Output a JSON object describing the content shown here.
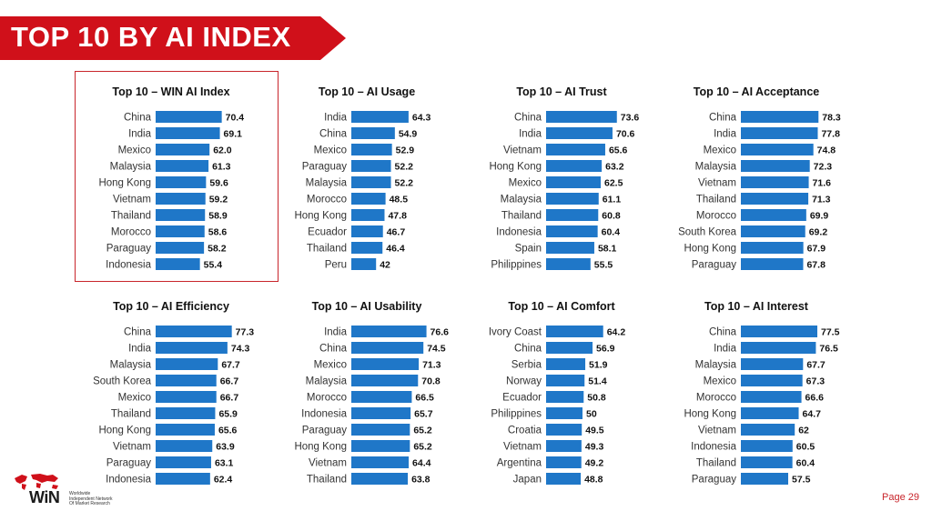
{
  "header": {
    "title": "TOP 10 BY AI INDEX"
  },
  "footer": {
    "page": "Page 29",
    "logo_text": "WiN",
    "logo_lines": [
      "Worldwide",
      "Independent Network",
      "Of Market Research"
    ]
  },
  "colors": {
    "bar": "#1f77c8",
    "banner": "#d0101a",
    "highlight": "#c8252b"
  },
  "chart_data": [
    {
      "type": "bar",
      "orientation": "horizontal",
      "title": "Top 10 – WIN AI Index",
      "categories": [
        "China",
        "India",
        "Mexico",
        "Malaysia",
        "Hong Kong",
        "Vietnam",
        "Thailand",
        "Morocco",
        "Paraguay",
        "Indonesia"
      ],
      "labels": [
        "70.4",
        "69.1",
        "62.0",
        "61.3",
        "59.6",
        "59.2",
        "58.9",
        "58.6",
        "58.2",
        "55.4"
      ],
      "values": [
        70.4,
        69.1,
        62.0,
        61.3,
        59.6,
        59.2,
        58.9,
        58.6,
        58.2,
        55.4
      ]
    },
    {
      "type": "bar",
      "orientation": "horizontal",
      "title": "Top 10 – AI Usage",
      "categories": [
        "India",
        "China",
        "Mexico",
        "Paraguay",
        "Malaysia",
        "Morocco",
        "Hong Kong",
        "Ecuador",
        "Thailand",
        "Peru"
      ],
      "labels": [
        "64.3",
        "54.9",
        "52.9",
        "52.2",
        "52.2",
        "48.5",
        "47.8",
        "46.7",
        "46.4",
        "42"
      ],
      "values": [
        64.3,
        54.9,
        52.9,
        52.2,
        52.2,
        48.5,
        47.8,
        46.7,
        46.4,
        42
      ]
    },
    {
      "type": "bar",
      "orientation": "horizontal",
      "title": "Top 10 – AI Trust",
      "categories": [
        "China",
        "India",
        "Vietnam",
        "Hong Kong",
        "Mexico",
        "Malaysia",
        "Thailand",
        "Indonesia",
        "Spain",
        "Philippines"
      ],
      "labels": [
        "73.6",
        "70.6",
        "65.6",
        "63.2",
        "62.5",
        "61.1",
        "60.8",
        "60.4",
        "58.1",
        "55.5"
      ],
      "values": [
        73.6,
        70.6,
        65.6,
        63.2,
        62.5,
        61.1,
        60.8,
        60.4,
        58.1,
        55.5
      ]
    },
    {
      "type": "bar",
      "orientation": "horizontal",
      "title": "Top 10 – AI Acceptance",
      "categories": [
        "China",
        "India",
        "Mexico",
        "Malaysia",
        "Vietnam",
        "Thailand",
        "Morocco",
        "South Korea",
        "Hong Kong",
        "Paraguay"
      ],
      "labels": [
        "78.3",
        "77.8",
        "74.8",
        "72.3",
        "71.6",
        "71.3",
        "69.9",
        "69.2",
        "67.9",
        "67.8"
      ],
      "values": [
        78.3,
        77.8,
        74.8,
        72.3,
        71.6,
        71.3,
        69.9,
        69.2,
        67.9,
        67.8
      ]
    },
    {
      "type": "bar",
      "orientation": "horizontal",
      "title": "Top 10 – AI Efficiency",
      "categories": [
        "China",
        "India",
        "Malaysia",
        "South Korea",
        "Mexico",
        "Thailand",
        "Hong Kong",
        "Vietnam",
        "Paraguay",
        "Indonesia"
      ],
      "labels": [
        "77.3",
        "74.3",
        "67.7",
        "66.7",
        "66.7",
        "65.9",
        "65.6",
        "63.9",
        "63.1",
        "62.4"
      ],
      "values": [
        77.3,
        74.3,
        67.7,
        66.7,
        66.7,
        65.9,
        65.6,
        63.9,
        63.1,
        62.4
      ]
    },
    {
      "type": "bar",
      "orientation": "horizontal",
      "title": "Top 10 – AI Usability",
      "categories": [
        "India",
        "China",
        "Mexico",
        "Malaysia",
        "Morocco",
        "Indonesia",
        "Paraguay",
        "Hong Kong",
        "Vietnam",
        "Thailand"
      ],
      "labels": [
        "76.6",
        "74.5",
        "71.3",
        "70.8",
        "66.5",
        "65.7",
        "65.2",
        "65.2",
        "64.4",
        "63.8"
      ],
      "values": [
        76.6,
        74.5,
        71.3,
        70.8,
        66.5,
        65.7,
        65.2,
        65.2,
        64.4,
        63.8
      ]
    },
    {
      "type": "bar",
      "orientation": "horizontal",
      "title": "Top 10 – AI Comfort",
      "categories": [
        "Ivory Coast",
        "China",
        "Serbia",
        "Norway",
        "Ecuador",
        "Philippines",
        "Croatia",
        "Vietnam",
        "Argentina",
        "Japan"
      ],
      "labels": [
        "64.2",
        "56.9",
        "51.9",
        "51.4",
        "50.8",
        "50",
        "49.5",
        "49.3",
        "49.2",
        "48.8"
      ],
      "values": [
        64.2,
        56.9,
        51.9,
        51.4,
        50.8,
        50,
        49.5,
        49.3,
        49.2,
        48.8
      ]
    },
    {
      "type": "bar",
      "orientation": "horizontal",
      "title": "Top 10 – AI Interest",
      "categories": [
        "China",
        "India",
        "Malaysia",
        "Mexico",
        "Morocco",
        "Hong Kong",
        "Vietnam",
        "Indonesia",
        "Thailand",
        "Paraguay"
      ],
      "labels": [
        "77.5",
        "76.5",
        "67.7",
        "67.3",
        "66.6",
        "64.7",
        "62",
        "60.5",
        "60.4",
        "57.5"
      ],
      "values": [
        77.5,
        76.5,
        67.7,
        67.3,
        66.6,
        64.7,
        62,
        60.5,
        60.4,
        57.5
      ]
    }
  ]
}
